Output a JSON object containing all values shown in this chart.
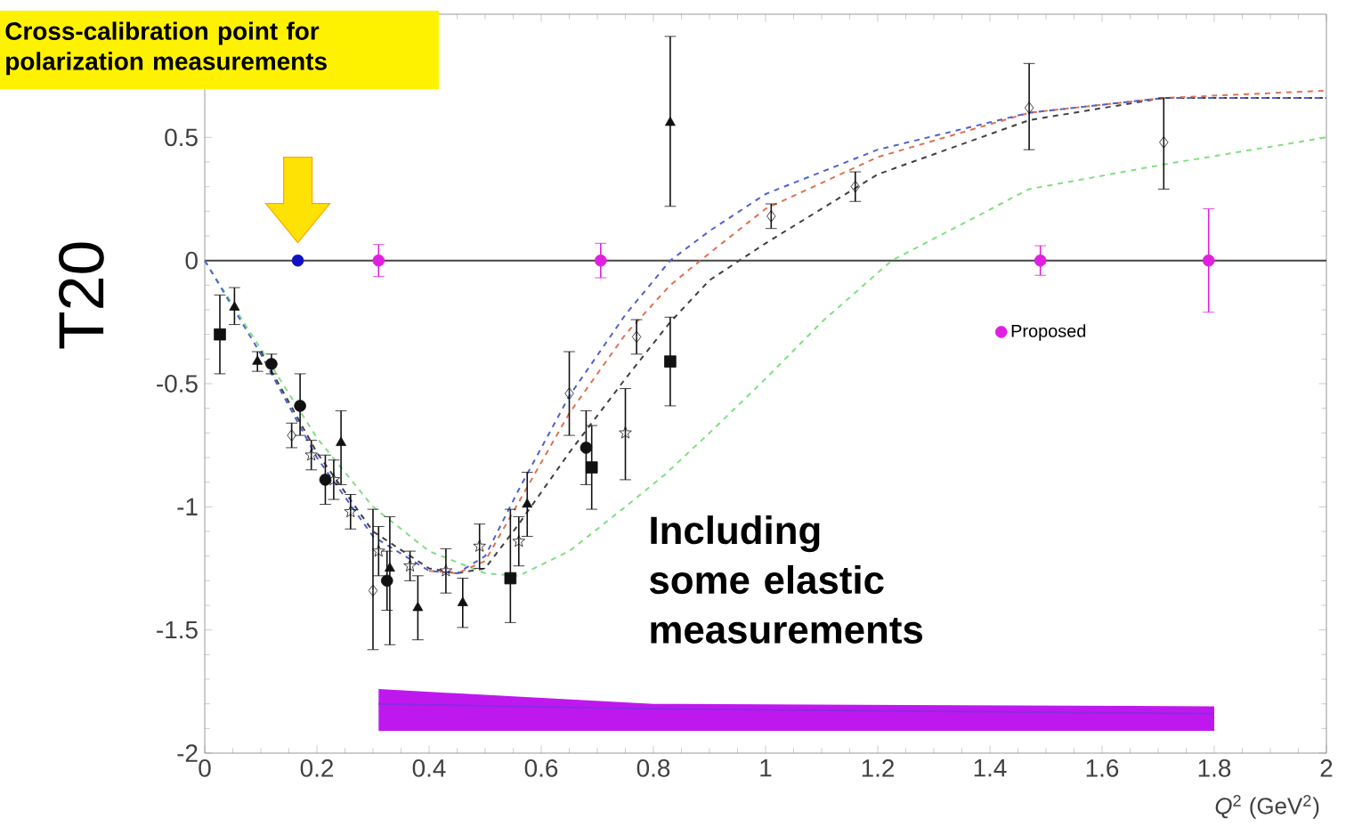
{
  "chart_data": {
    "type": "scatter",
    "xlabel": "*Q*$^{2}$ (GeV$^{2}$)",
    "ylabel": "T20",
    "xlim": [
      0,
      2
    ],
    "ylim": [
      -2,
      1
    ],
    "xticks": [
      0,
      0.2,
      0.4,
      0.6,
      0.8,
      1,
      1.2,
      1.4,
      1.6,
      1.8,
      2
    ],
    "yticks": [
      -2,
      -1.5,
      -1,
      -0.5,
      0,
      0.5
    ],
    "legend": "right",
    "ref_lines": [
      {
        "axis": "y",
        "value": 0,
        "color": "#444444"
      }
    ],
    "annotations": [
      "Cross-calibration point for polarization measurements",
      "Including some elastic measurements"
    ],
    "series": [
      {
        "type": "line",
        "color": "#8a2be2",
        "marker": "none",
        "x": [
          0.31,
          0.55,
          0.8,
          1.8
        ],
        "values": [
          -1.8,
          -1.81,
          -1.82,
          -1.84
        ],
        "lower": [
          -1.91,
          -1.91,
          -1.91,
          -1.91
        ],
        "upper": [
          -1.74,
          -1.77,
          -1.8,
          -1.81
        ]
      },
      {
        "type": "line",
        "color": "#5060d0",
        "line_style": "dashed",
        "marker": "none",
        "x": [
          0,
          0.1,
          0.2,
          0.3,
          0.4,
          0.45,
          0.5,
          0.56,
          0.65,
          0.75,
          0.83,
          0.9,
          1.0,
          1.2,
          1.47,
          1.71,
          2.0
        ],
        "values": [
          0,
          -0.38,
          -0.8,
          -1.12,
          -1.26,
          -1.27,
          -1.2,
          -0.93,
          -0.55,
          -0.22,
          0,
          0.12,
          0.27,
          0.45,
          0.6,
          0.66,
          0.66
        ]
      },
      {
        "type": "line",
        "color": "#e07050",
        "line_style": "dashed",
        "marker": "none",
        "x": [
          0.4,
          0.45,
          0.5,
          0.56,
          0.65,
          0.75,
          0.83,
          0.9,
          1.0,
          1.2,
          1.47,
          1.71,
          2.0
        ],
        "values": [
          -1.26,
          -1.27,
          -1.22,
          -0.98,
          -0.62,
          -0.3,
          -0.1,
          0.03,
          0.21,
          0.42,
          0.6,
          0.66,
          0.69
        ]
      },
      {
        "type": "line",
        "color": "#404040",
        "line_style": "dashed",
        "marker": "none",
        "x": [
          0.1,
          0.2,
          0.3,
          0.4,
          0.45,
          0.5,
          0.56,
          0.65,
          0.75,
          0.83,
          0.9,
          1.0,
          1.2,
          1.47,
          1.71,
          2.0
        ],
        "values": [
          -0.37,
          -0.78,
          -1.1,
          -1.25,
          -1.27,
          -1.25,
          -1.07,
          -0.78,
          -0.48,
          -0.25,
          -0.08,
          0.07,
          0.35,
          0.57,
          0.66,
          0.66
        ]
      },
      {
        "type": "line",
        "color": "#80e080",
        "line_style": "dashed",
        "marker": "none",
        "x": [
          0,
          0.1,
          0.2,
          0.3,
          0.4,
          0.5,
          0.56,
          0.65,
          0.75,
          0.82,
          0.9,
          1.0,
          1.1,
          1.225,
          1.47,
          1.71,
          2.0
        ],
        "values": [
          0,
          -0.36,
          -0.72,
          -1.0,
          -1.18,
          -1.27,
          -1.28,
          -1.18,
          -1.0,
          -0.87,
          -0.7,
          -0.48,
          -0.25,
          0,
          0.29,
          0.39,
          0.5
        ]
      },
      {
        "color": "#111111",
        "marker": "square",
        "x": [
          0.027,
          0.545,
          0.69,
          0.83
        ],
        "values": [
          -0.3,
          -1.29,
          -0.84,
          -0.41
        ],
        "errors": [
          [
            -0.46,
            -0.14
          ],
          [
            -1.47,
            -1.01
          ],
          [
            -1.01,
            -0.67
          ],
          [
            -0.59,
            -0.23
          ]
        ]
      },
      {
        "color": "#111111",
        "marker": "triangle",
        "x": [
          0.053,
          0.094,
          0.243,
          0.33,
          0.38,
          0.46,
          0.575,
          0.83
        ],
        "values": [
          -0.19,
          -0.41,
          -0.74,
          -1.25,
          -1.41,
          -1.39,
          -0.99,
          0.56
        ],
        "errors": [
          [
            -0.26,
            -0.11
          ],
          0.04,
          [
            -0.91,
            -0.61
          ],
          [
            -1.56,
            -1.04
          ],
          0.13,
          0.1,
          0.13,
          [
            0.22,
            0.91
          ]
        ]
      },
      {
        "color": "#111111",
        "marker": "circle",
        "x": [
          0.119,
          0.17,
          0.215,
          0.325,
          0.68
        ],
        "values": [
          -0.42,
          -0.59,
          -0.89,
          -1.3,
          -0.76
        ],
        "errors": [
          0.04,
          [
            -0.71,
            -0.46
          ],
          0.1,
          0.12,
          0.15
        ]
      },
      {
        "color": "#111111",
        "marker": "diamond",
        "x": [
          0.155,
          0.3,
          0.65,
          0.77,
          1.01,
          1.16,
          1.47,
          1.71
        ],
        "values": [
          -0.71,
          -1.34,
          -0.54,
          -0.31,
          0.18,
          0.3,
          0.62,
          0.48
        ],
        "errors": [
          0.05,
          [
            -1.58,
            -1.01
          ],
          0.17,
          0.07,
          0.05,
          0.06,
          [
            0.45,
            0.8
          ],
          [
            0.29,
            0.66
          ]
        ]
      },
      {
        "color": "#111111",
        "marker": "star",
        "x": [
          0.19,
          0.23,
          0.26,
          0.31,
          0.366,
          0.43,
          0.49,
          0.56,
          0.75
        ],
        "values": [
          -0.79,
          -0.89,
          -1.02,
          -1.18,
          -1.24,
          -1.26,
          -1.16,
          -1.14,
          -0.7
        ],
        "errors": [
          0.06,
          0.08,
          0.07,
          0.1,
          0.06,
          0.09,
          0.09,
          0.1,
          [
            -0.89,
            -0.52
          ]
        ]
      },
      {
        "color": "#1010c0",
        "marker": "circle",
        "x": [
          0.166
        ],
        "values": [
          0
        ]
      },
      {
        "name": "Proposed",
        "color": "#e020e0",
        "marker": "circle",
        "x": [
          0.31,
          0.706,
          1.49,
          1.79
        ],
        "values": [
          0,
          0,
          0,
          0
        ],
        "errors": [
          0.065,
          0.07,
          0.06,
          0.21
        ]
      }
    ]
  }
}
